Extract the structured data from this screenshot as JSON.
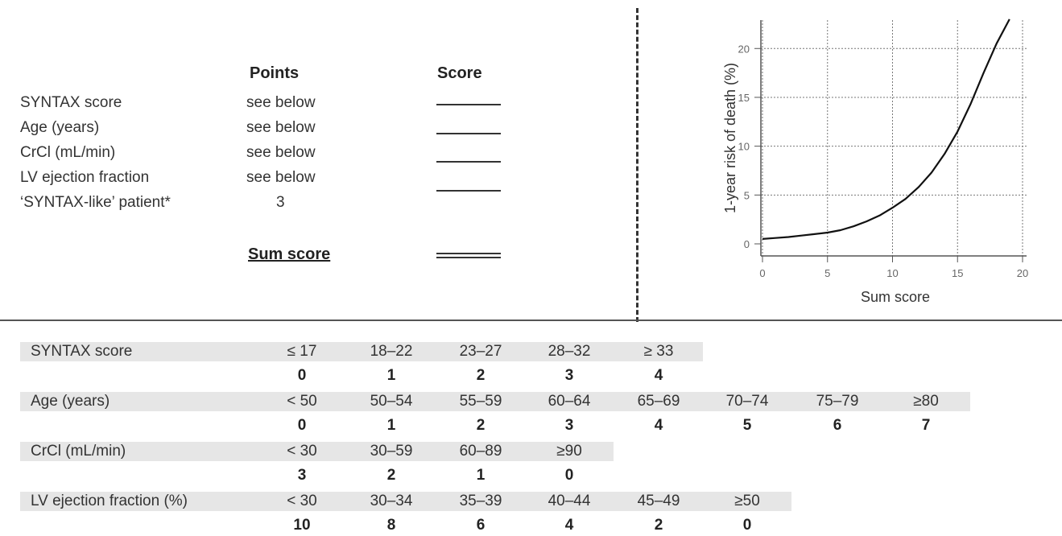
{
  "card": {
    "points_header": "Points",
    "score_header": "Score",
    "rows": [
      {
        "label": "SYNTAX score",
        "points": "see below"
      },
      {
        "label": "Age (years)",
        "points": "see below"
      },
      {
        "label": "CrCl (mL/min)",
        "points": "see below"
      },
      {
        "label": "LV ejection fraction",
        "points": "see below"
      },
      {
        "label": "‘SYNTAX-like’ patient*",
        "points": "3"
      }
    ],
    "sum_label": "Sum score"
  },
  "chart_data": {
    "type": "line",
    "title": "",
    "xlabel": "Sum score",
    "ylabel": "1-year risk of death (%)",
    "xlim": [
      0,
      20
    ],
    "ylim": [
      0,
      22
    ],
    "x_ticks": [
      "0",
      "5",
      "10",
      "15",
      "20"
    ],
    "y_ticks": [
      "0",
      "5",
      "10",
      "15",
      "20"
    ],
    "grid": true,
    "series": [
      {
        "x": [
          0,
          1,
          2,
          3,
          4,
          5,
          6,
          7,
          8,
          9,
          10,
          11,
          12,
          13,
          14,
          15,
          16,
          17,
          18,
          19
        ],
        "values": [
          0.5,
          0.6,
          0.7,
          0.85,
          1.0,
          1.15,
          1.4,
          1.8,
          2.3,
          2.9,
          3.7,
          4.6,
          5.8,
          7.3,
          9.2,
          11.5,
          14.3,
          17.5,
          20.5,
          23.0
        ]
      }
    ]
  },
  "table": {
    "rows": [
      {
        "label": "SYNTAX score",
        "ranges": [
          "≤ 17",
          "18–22",
          "23–27",
          "28–32",
          "≥ 33"
        ],
        "points": [
          "0",
          "1",
          "2",
          "3",
          "4"
        ]
      },
      {
        "label": "Age (years)",
        "ranges": [
          "< 50",
          "50–54",
          "55–59",
          "60–64",
          "65–69",
          "70–74",
          "75–79",
          "≥80"
        ],
        "points": [
          "0",
          "1",
          "2",
          "3",
          "4",
          "5",
          "6",
          "7"
        ]
      },
      {
        "label": "CrCl (mL/min)",
        "ranges": [
          "< 30",
          "30–59",
          "60–89",
          "≥90"
        ],
        "points": [
          "3",
          "2",
          "1",
          "0"
        ]
      },
      {
        "label": "LV ejection fraction (%)",
        "ranges": [
          "< 30",
          "30–34",
          "35–39",
          "40–44",
          "45–49",
          "≥50"
        ],
        "points": [
          "10",
          "8",
          "6",
          "4",
          "2",
          "0"
        ]
      }
    ]
  }
}
